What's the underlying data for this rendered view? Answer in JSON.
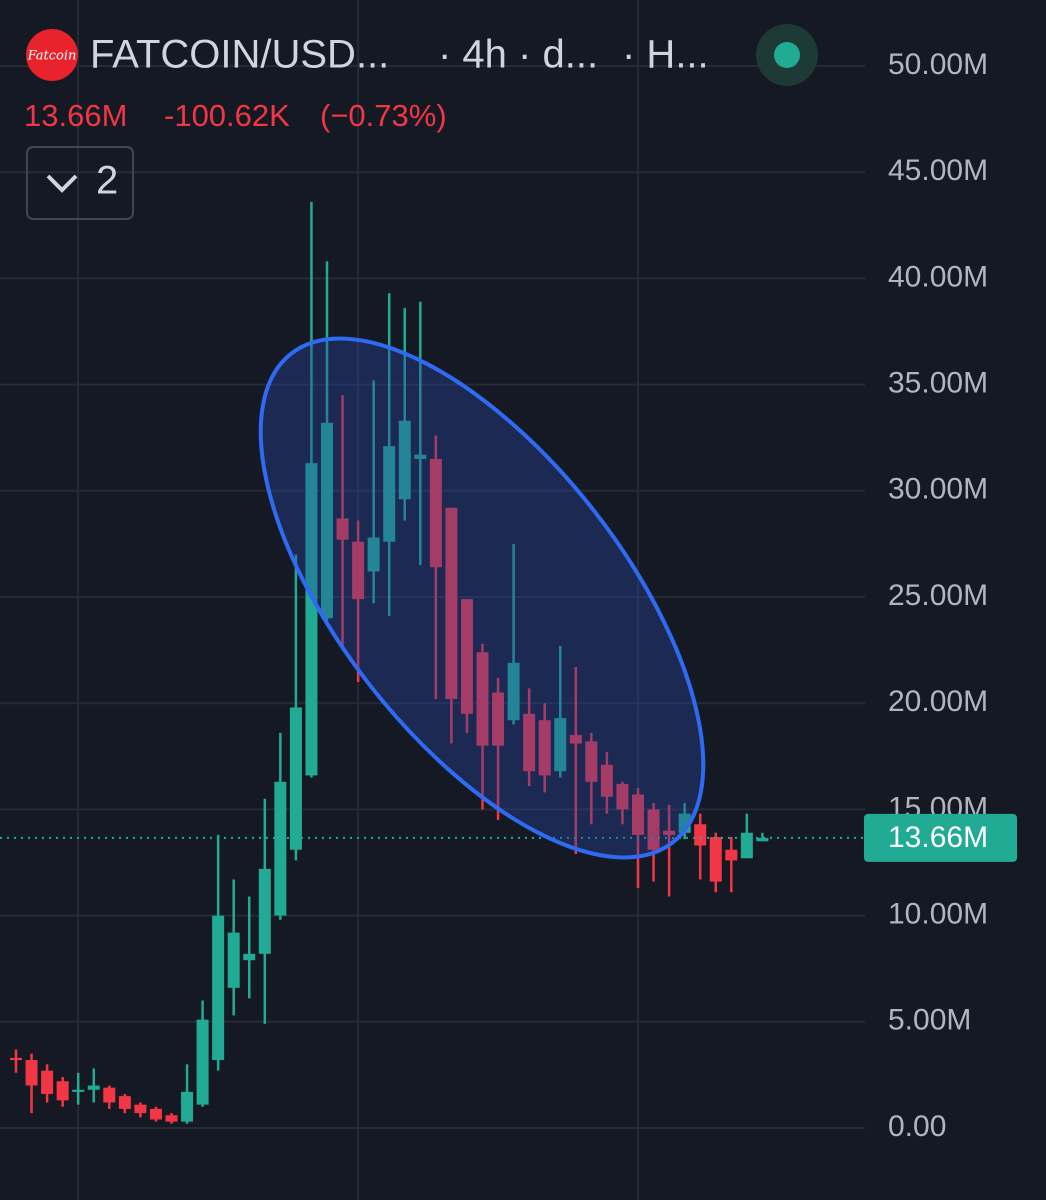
{
  "header": {
    "logo": "Fatcoin",
    "symbol": "FATCOIN/USD...",
    "interval": "· 4h · d...",
    "source": "· H...",
    "price": "13.66M",
    "change": "-100.62K",
    "change_pct": "(−0.73%)",
    "indicator_count": "2"
  },
  "chart_data": {
    "type": "candlestick",
    "up_color": "#22ab94",
    "down_color": "#f23645",
    "grid": true,
    "ylim": [
      0,
      50000000
    ],
    "yticks": [
      {
        "value": 0,
        "label": "0.00"
      },
      {
        "value": 5000000,
        "label": "5.00M"
      },
      {
        "value": 10000000,
        "label": "10.00M"
      },
      {
        "value": 15000000,
        "label": "15.00M"
      },
      {
        "value": 20000000,
        "label": "20.00M"
      },
      {
        "value": 25000000,
        "label": "25.00M"
      },
      {
        "value": 30000000,
        "label": "30.00M"
      },
      {
        "value": 35000000,
        "label": "35.00M"
      },
      {
        "value": 40000000,
        "label": "40.00M"
      },
      {
        "value": 45000000,
        "label": "45.00M"
      },
      {
        "value": 50000000,
        "label": "50.00M"
      }
    ],
    "last_price": {
      "value": 13660000,
      "label": "13.66M"
    },
    "open": [
      3300000,
      3200000,
      2700000,
      2200000,
      1700000,
      1800000,
      1900000,
      1500000,
      1100000,
      900000,
      600000,
      300000,
      1100000,
      3200000,
      6600000,
      7900000,
      8200000,
      10000000,
      13100000,
      16600000,
      24000000,
      28700000,
      27600000,
      26200000,
      27600000,
      29600000,
      31500000,
      31500000,
      29200000,
      24900000,
      22400000,
      20500000,
      19200000,
      19500000,
      19200000,
      16800000,
      18500000,
      18200000,
      17100000,
      16200000,
      15700000,
      15000000,
      14000000,
      13900000,
      14300000,
      13700000,
      13100000,
      12700000,
      13500000
    ],
    "high": [
      3700000,
      3500000,
      3000000,
      2400000,
      2600000,
      2800000,
      2000000,
      1600000,
      1200000,
      1000000,
      700000,
      3000000,
      6000000,
      13800000,
      11700000,
      10900000,
      15500000,
      18600000,
      27000000,
      43600000,
      40800000,
      34500000,
      28600000,
      35200000,
      39300000,
      38600000,
      38900000,
      32600000,
      29200000,
      24900000,
      22800000,
      21200000,
      27500000,
      20700000,
      20000000,
      22700000,
      21700000,
      18600000,
      17700000,
      16300000,
      16000000,
      15300000,
      15200000,
      15300000,
      14800000,
      13900000,
      13700000,
      14800000,
      13900000
    ],
    "low": [
      2600000,
      700000,
      1200000,
      1000000,
      1100000,
      1200000,
      900000,
      700000,
      500000,
      300000,
      200000,
      200000,
      1000000,
      2700000,
      5300000,
      6100000,
      4900000,
      9800000,
      12600000,
      16500000,
      23900000,
      22600000,
      21000000,
      24700000,
      24100000,
      28600000,
      26500000,
      20200000,
      18100000,
      18600000,
      15000000,
      14500000,
      19000000,
      16100000,
      15800000,
      16500000,
      12900000,
      14300000,
      14800000,
      14300000,
      11300000,
      11600000,
      10900000,
      13600000,
      11700000,
      11100000,
      11100000,
      12700000,
      13500000
    ],
    "close": [
      3200000,
      2000000,
      1600000,
      1300000,
      1800000,
      2000000,
      1200000,
      900000,
      700000,
      400000,
      300000,
      1700000,
      5100000,
      10000000,
      9200000,
      8200000,
      12200000,
      16300000,
      19800000,
      31300000,
      33200000,
      27700000,
      24900000,
      27800000,
      32100000,
      33300000,
      31700000,
      26400000,
      20200000,
      19500000,
      18000000,
      18000000,
      21900000,
      16800000,
      16600000,
      19300000,
      18100000,
      16300000,
      15600000,
      15000000,
      13800000,
      13100000,
      13800000,
      14800000,
      13300000,
      11600000,
      12600000,
      13900000,
      13660000
    ]
  }
}
